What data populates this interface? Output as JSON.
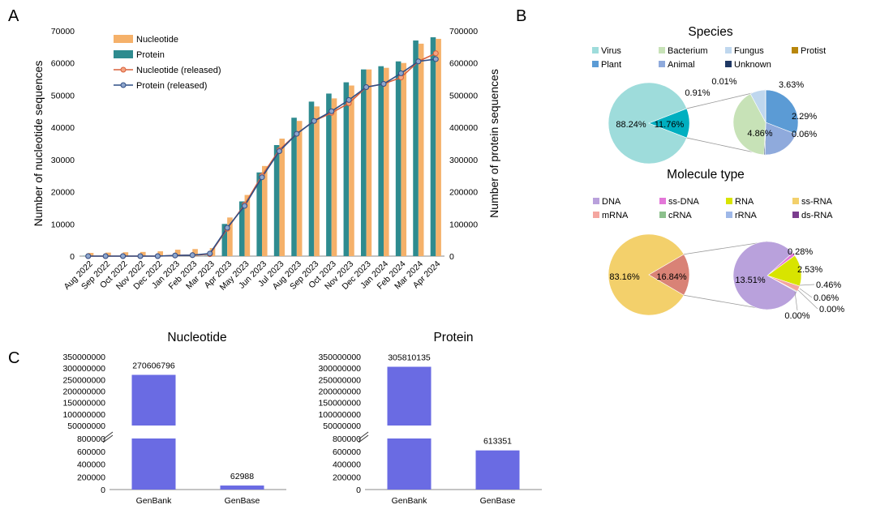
{
  "panels": {
    "a": "A",
    "b": "B",
    "c": "C"
  },
  "colors": {
    "nucleotide_bar": "#F5B16A",
    "protein_bar": "#2E8B8F",
    "nucleotide_line": "#D9603B",
    "protein_line": "#2F4E86",
    "bar_c": "#6A6BE3"
  },
  "chart_data": [
    {
      "id": "A",
      "type": "bar",
      "categories": [
        "Aug 2022",
        "Sep 2022",
        "Oct 2022",
        "Nov 2022",
        "Dec 2022",
        "Jan 2023",
        "Feb 2023",
        "Mar 2023",
        "Apr 2023",
        "May 2023",
        "Jun 2023",
        "Jul 2023",
        "Aug 2023",
        "Sep 2023",
        "Oct 2023",
        "Nov 2023",
        "Dec 2023",
        "Jan 2024",
        "Feb 2024",
        "Mar 2024",
        "Apr 2024"
      ],
      "ylabel": "Number of nucleotide sequences",
      "y2label": "Number of protein sequences",
      "ylim": [
        0,
        70000
      ],
      "y2lim": [
        0,
        700000
      ],
      "yticks": [
        "0",
        "10000",
        "20000",
        "30000",
        "40000",
        "50000",
        "60000",
        "70000"
      ],
      "y2ticks": [
        "0",
        "100000",
        "200000",
        "300000",
        "400000",
        "500000",
        "600000",
        "700000"
      ],
      "legend_position": "top-left",
      "series": [
        {
          "name": "Nucleotide",
          "kind": "bar",
          "axis": "left",
          "values": [
            1000,
            1100,
            1200,
            1300,
            1500,
            2000,
            2200,
            2500,
            12000,
            19000,
            28000,
            36500,
            42000,
            46500,
            49000,
            53000,
            58000,
            58500,
            60000,
            66000,
            67500
          ]
        },
        {
          "name": "Protein",
          "kind": "bar",
          "axis": "right",
          "values": [
            1000,
            1000,
            1000,
            1000,
            1000,
            1500,
            1500,
            1500,
            100000,
            170000,
            260000,
            345000,
            430000,
            480000,
            505000,
            540000,
            580000,
            590000,
            605000,
            670000,
            680000
          ]
        },
        {
          "name": "Nucleotide (released)",
          "kind": "line",
          "axis": "left",
          "values": [
            0,
            0,
            0,
            0,
            0,
            200,
            300,
            600,
            8500,
            16000,
            25000,
            33000,
            38000,
            42000,
            44500,
            47500,
            52500,
            53500,
            55500,
            60500,
            63000
          ]
        },
        {
          "name": "Protein (released)",
          "kind": "line",
          "axis": "right",
          "values": [
            0,
            0,
            0,
            0,
            0,
            2000,
            3000,
            8000,
            88000,
            156000,
            245000,
            326000,
            380000,
            420000,
            450000,
            485000,
            525000,
            535000,
            568000,
            605000,
            612000
          ]
        }
      ]
    },
    {
      "id": "B-species",
      "type": "pie",
      "title": "Species",
      "legend": [
        {
          "name": "Virus",
          "color": "#9EDCDB"
        },
        {
          "name": "Bacterium",
          "color": "#C7E2B7"
        },
        {
          "name": "Fungus",
          "color": "#BFD7EE"
        },
        {
          "name": "Protist",
          "color": "#B8860B"
        },
        {
          "name": "Plant",
          "color": "#5B9BD5"
        },
        {
          "name": "Animal",
          "color": "#8FAADC"
        },
        {
          "name": "Unknown",
          "color": "#1F3864"
        }
      ],
      "main": [
        {
          "name": "Virus",
          "value": 88.24,
          "label": "88.24%",
          "color": "#9EDCDB"
        },
        {
          "name": "Other",
          "value": 11.76,
          "label": "11.76%",
          "color": "#00AFC0"
        }
      ],
      "breakdown": [
        {
          "name": "Plant",
          "value": 3.63,
          "label": "3.63%",
          "color": "#5B9BD5"
        },
        {
          "name": "Animal",
          "value": 2.29,
          "label": "2.29%",
          "color": "#8FAADC"
        },
        {
          "name": "Unknown",
          "value": 0.06,
          "label": "0.06%",
          "color": "#1F3864"
        },
        {
          "name": "Bacterium",
          "value": 4.86,
          "label": "4.86%",
          "color": "#C7E2B7"
        },
        {
          "name": "Fungus",
          "value": 0.91,
          "label": "0.91%",
          "color": "#BFD7EE"
        },
        {
          "name": "Protist",
          "value": 0.01,
          "label": "0.01%",
          "color": "#B8860B"
        }
      ]
    },
    {
      "id": "B-molecule",
      "type": "pie",
      "title": "Molecule type",
      "legend": [
        {
          "name": "DNA",
          "color": "#B9A1DC"
        },
        {
          "name": "ss-DNA",
          "color": "#E377D8"
        },
        {
          "name": "RNA",
          "color": "#D8E400"
        },
        {
          "name": "ss-RNA",
          "color": "#F3D06B"
        },
        {
          "name": "mRNA",
          "color": "#F4A6A0"
        },
        {
          "name": "cRNA",
          "color": "#8CC08C"
        },
        {
          "name": "rRNA",
          "color": "#9FB8E8"
        },
        {
          "name": "ds-RNA",
          "color": "#7B3D8E"
        }
      ],
      "main": [
        {
          "name": "ss-RNA",
          "value": 83.16,
          "label": "83.16%",
          "color": "#F3D06B"
        },
        {
          "name": "Other",
          "value": 16.84,
          "label": "16.84%",
          "color": "#D98276"
        }
      ],
      "breakdown": [
        {
          "name": "ss-DNA",
          "value": 0.28,
          "label": "0.28%",
          "color": "#E377D8"
        },
        {
          "name": "RNA",
          "value": 2.53,
          "label": "2.53%",
          "color": "#D8E400"
        },
        {
          "name": "mRNA",
          "value": 0.46,
          "label": "0.46%",
          "color": "#F4A6A0"
        },
        {
          "name": "cRNA",
          "value": 0.06,
          "label": "0.06%",
          "color": "#8CC08C"
        },
        {
          "name": "rRNA",
          "value": 0.0,
          "label": "0.00%",
          "color": "#9FB8E8"
        },
        {
          "name": "ds-RNA",
          "value": 0.0,
          "label": "0.00%",
          "color": "#7B3D8E"
        },
        {
          "name": "DNA",
          "value": 13.51,
          "label": "13.51%",
          "color": "#B9A1DC"
        }
      ]
    },
    {
      "id": "C-nucleotide",
      "type": "bar",
      "title": "Nucleotide",
      "categories": [
        "GenBank",
        "GenBase"
      ],
      "values": [
        270606796,
        62988
      ],
      "data_labels": [
        "270606796",
        "62988"
      ],
      "broken_axis": {
        "lower_ticks": [
          "0",
          "200000",
          "400000",
          "600000",
          "800000"
        ],
        "upper_ticks": [
          "50000000",
          "100000000",
          "150000000",
          "200000000",
          "250000000",
          "300000000",
          "350000000"
        ]
      }
    },
    {
      "id": "C-protein",
      "type": "bar",
      "title": "Protein",
      "categories": [
        "GenBank",
        "GenBase"
      ],
      "values": [
        305810135,
        613351
      ],
      "data_labels": [
        "305810135",
        "613351"
      ],
      "broken_axis": {
        "lower_ticks": [
          "0",
          "200000",
          "400000",
          "600000",
          "800000"
        ],
        "upper_ticks": [
          "50000000",
          "100000000",
          "150000000",
          "200000000",
          "250000000",
          "300000000",
          "350000000"
        ]
      }
    }
  ]
}
